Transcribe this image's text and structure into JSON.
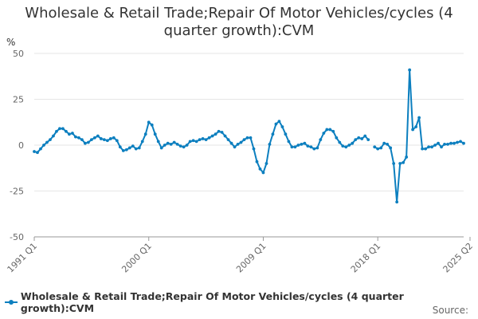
{
  "chart_data": {
    "type": "line",
    "title": "Wholesale & Retail Trade;Repair Of Motor Vehicles/cycles (4 quarter growth):CVM",
    "title_display": "Wholesale & Retail Trade;Repair Of Motor Vehicles/cycles (4\nquarter growth):CVM",
    "ylabel": "%",
    "ylim": [
      -50,
      50
    ],
    "yticks": [
      50,
      25,
      0,
      -25,
      -50
    ],
    "xticks": [
      "1991 Q1",
      "2000 Q1",
      "2009 Q1",
      "2018 Q1",
      "2025 Q2"
    ],
    "grid": true,
    "legend_position": "bottom",
    "source_label": "Source:",
    "line_color": "#0c7fbf",
    "series": [
      {
        "name": "Wholesale & Retail Trade;Repair Of Motor Vehicles/cycles (4 quarter growth):CVM",
        "x_start": "1991 Q1",
        "values": [
          -3.5,
          -4.0,
          -2.0,
          0.0,
          1.5,
          3.0,
          5.0,
          7.5,
          9.0,
          9.0,
          7.5,
          6.0,
          6.5,
          4.5,
          4.0,
          3.0,
          1.0,
          1.5,
          3.0,
          4.0,
          5.0,
          3.5,
          3.0,
          2.5,
          3.5,
          4.0,
          2.5,
          -1.0,
          -3.0,
          -2.5,
          -1.5,
          -0.5,
          -2.0,
          -1.5,
          2.0,
          6.0,
          12.5,
          11.0,
          6.0,
          2.0,
          -1.5,
          0.0,
          1.0,
          0.5,
          1.5,
          0.5,
          -0.5,
          -1.0,
          0.0,
          2.0,
          2.5,
          2.0,
          3.0,
          3.5,
          3.0,
          4.0,
          5.0,
          6.0,
          7.5,
          7.0,
          5.0,
          3.0,
          1.0,
          -1.0,
          0.5,
          1.5,
          3.0,
          4.0,
          4.0,
          -2.0,
          -9.0,
          -13.0,
          -15.0,
          -10.0,
          0.5,
          6.0,
          11.5,
          13.0,
          10.0,
          6.0,
          2.0,
          -1.0,
          -1.0,
          0.0,
          0.5,
          1.0,
          -0.5,
          -1.0,
          -2.0,
          -1.5,
          3.0,
          6.5,
          8.5,
          8.5,
          7.5,
          4.0,
          1.5,
          -0.5,
          -1.0,
          0.0,
          1.0,
          3.0,
          4.0,
          3.5,
          5.0,
          3.0,
          null,
          -1.0,
          -2.0,
          -1.5,
          1.0,
          0.5,
          -1.5,
          -10.0,
          -31.0,
          -10.0,
          -9.5,
          -6.5,
          41.0,
          8.5,
          10.0,
          15.0,
          -2.0,
          -2.0,
          -1.0,
          -1.0,
          0.0,
          1.0,
          -1.0,
          0.5,
          0.5,
          1.0,
          1.0,
          1.5,
          2.0,
          1.0
        ]
      }
    ]
  }
}
